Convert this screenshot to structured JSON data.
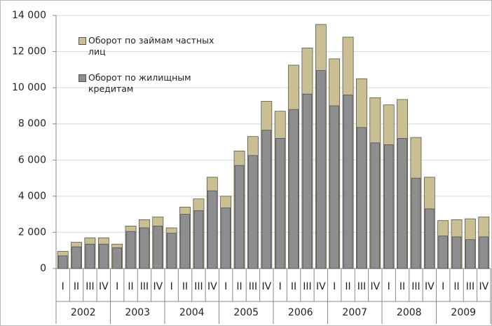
{
  "chart_data": {
    "type": "bar",
    "categories": [
      "I",
      "II",
      "III",
      "IV",
      "I",
      "II",
      "III",
      "IV",
      "I",
      "II",
      "III",
      "IV",
      "I",
      "II",
      "III",
      "IV",
      "I",
      "II",
      "III",
      "IV",
      "I",
      "II",
      "III",
      "IV",
      "I",
      "II",
      "III",
      "IV",
      "I",
      "II",
      "III",
      "IV"
    ],
    "groups": [
      "2002",
      "2003",
      "2004",
      "2005",
      "2006",
      "2007",
      "2008",
      "2009"
    ],
    "series": [
      {
        "name": "Оборот по займам частных лиц",
        "color": "#c9bf92",
        "values": [
          950,
          1450,
          1700,
          1700,
          1350,
          2350,
          2700,
          2850,
          2250,
          3400,
          3850,
          5050,
          4000,
          6500,
          7300,
          9250,
          8700,
          11250,
          12200,
          13500,
          11600,
          12800,
          10500,
          9450,
          9050,
          9350,
          7250,
          5050,
          2650,
          2700,
          2750,
          2850
        ]
      },
      {
        "name": "Оборот по жилищным кредитам",
        "color": "#8e8e90",
        "values": [
          700,
          1200,
          1350,
          1350,
          1150,
          2050,
          2250,
          2350,
          1950,
          3000,
          3200,
          4300,
          3350,
          5700,
          6250,
          7650,
          7200,
          8800,
          9650,
          10950,
          9000,
          9600,
          7800,
          6950,
          6850,
          7200,
          5000,
          3300,
          1800,
          1750,
          1600,
          1750
        ]
      }
    ],
    "ylim": [
      0,
      14000
    ],
    "yticks": [
      0,
      {
        "value": 2000,
        "label": "2 000"
      },
      {
        "value": 4000,
        "label": "4 000"
      },
      {
        "value": 6000,
        "label": "6 000"
      },
      {
        "value": 8000,
        "label": "8 000"
      },
      {
        "value": 10000,
        "label": "10 000"
      },
      {
        "value": 12000,
        "label": "12 000"
      },
      {
        "value": 14000,
        "label": "14 000"
      }
    ],
    "grid": true
  }
}
